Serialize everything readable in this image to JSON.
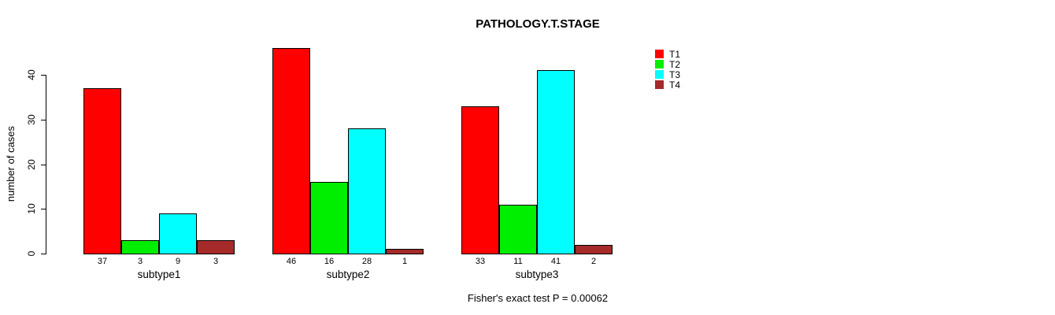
{
  "chart_data": {
    "type": "bar",
    "title": "PATHOLOGY.T.STAGE",
    "xlabel": "",
    "ylabel": "number of cases",
    "ylim": [
      0,
      40
    ],
    "yticks": [
      0,
      10,
      20,
      30,
      40
    ],
    "grid": false,
    "legend_position": "top-right",
    "categories": [
      "subtype1",
      "subtype2",
      "subtype3"
    ],
    "series": [
      {
        "name": "T1",
        "color": "#ff0000",
        "values": [
          37,
          46,
          33
        ]
      },
      {
        "name": "T2",
        "color": "#00ee00",
        "values": [
          3,
          16,
          11
        ]
      },
      {
        "name": "T3",
        "color": "#00ffff",
        "values": [
          9,
          28,
          41
        ]
      },
      {
        "name": "T4",
        "color": "#a52a2a",
        "values": [
          3,
          1,
          2
        ]
      }
    ],
    "bar_value_labels": [
      [
        "37",
        "3",
        "9",
        "3"
      ],
      [
        "46",
        "16",
        "28",
        "1"
      ],
      [
        "33",
        "11",
        "41",
        "2"
      ]
    ],
    "annotation": "Fisher's exact test P = 0.00062"
  },
  "colors": {
    "axis": "#000000",
    "bar_border": "#000000",
    "background": "#ffffff"
  }
}
